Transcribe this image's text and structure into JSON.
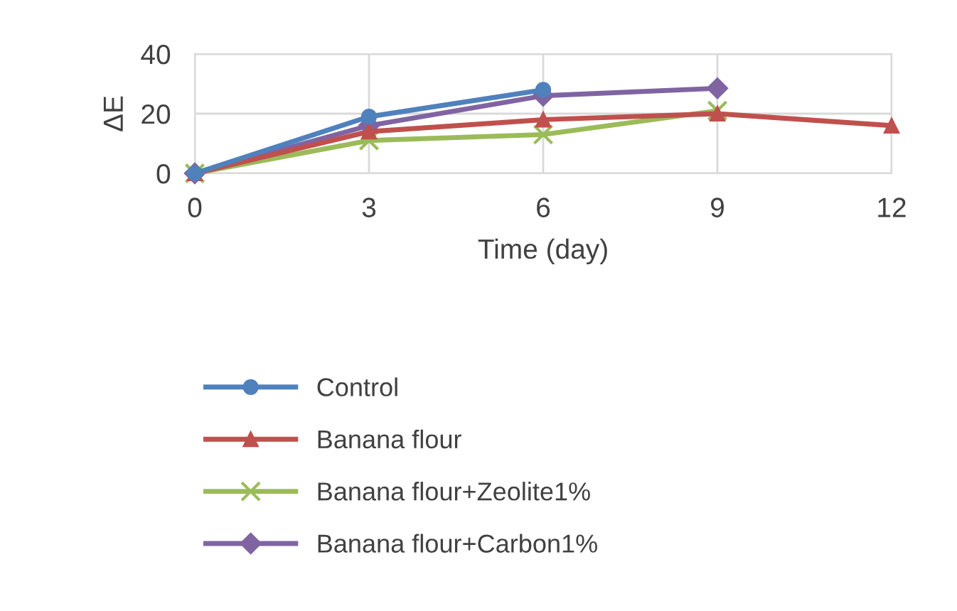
{
  "chart_data": {
    "type": "line",
    "xlabel": "Time (day)",
    "ylabel": "ΔE",
    "x": [
      0,
      3,
      6,
      9,
      12
    ],
    "xlim": [
      0,
      12
    ],
    "xticks": [
      0,
      3,
      6,
      9,
      12
    ],
    "ylim": [
      0,
      40
    ],
    "yticks": [
      0,
      20,
      40
    ],
    "grid": true,
    "legend": "bottom",
    "line_style": "solid",
    "series": [
      {
        "name": "Control",
        "color": "#4f81bd",
        "marker": "circle",
        "values": [
          0,
          19,
          28,
          null,
          null
        ]
      },
      {
        "name": "Banana flour",
        "color": "#c0504d",
        "marker": "triangle",
        "values": [
          0,
          14,
          18,
          20,
          16
        ]
      },
      {
        "name": "Banana flour+Zeolite1%",
        "color": "#9bbb59",
        "marker": "cross",
        "values": [
          0,
          11,
          13,
          21,
          null
        ]
      },
      {
        "name": "Banana flour+Carbon1%",
        "color": "#8064a2",
        "marker": "diamond",
        "values": [
          0,
          16,
          26,
          28.5,
          null
        ]
      }
    ]
  }
}
